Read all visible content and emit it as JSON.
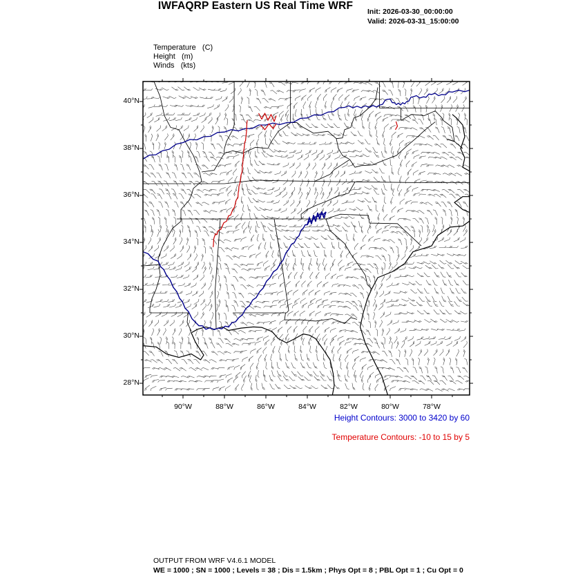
{
  "header": {
    "title": "IWFAQRP Eastern US Real Time WRF",
    "init": "Init: 2026-03-30_00:00:00",
    "valid": "Valid: 2026-03-31_15:00:00"
  },
  "legend": {
    "temperature": "Temperature   (C)",
    "height": "Height   (m)",
    "winds": "Winds   (kts)"
  },
  "axes": {
    "lat": [
      "40°N",
      "38°N",
      "36°N",
      "34°N",
      "32°N",
      "30°N",
      "28°N"
    ],
    "lon": [
      "90°W",
      "88°W",
      "86°W",
      "84°W",
      "82°W",
      "80°W",
      "78°W"
    ]
  },
  "notes": {
    "height": "Height Contours: 3000 to 3420 by 60",
    "temperature": "Temperature Contours: -10 to 15 by 5"
  },
  "footer": {
    "line1": "OUTPUT FROM WRF V4.6.1 MODEL",
    "line2": "WE = 1000 ; SN = 1000 ; Levels = 38 ; Dis = 1.5km ; Phys Opt = 8 ; PBL Opt = 1 ; Cu Opt = 0"
  },
  "colors": {
    "height_contour": "#00008B",
    "temperature_contour": "#CC0000",
    "note_height": "#0000CC",
    "note_temperature": "#E00000",
    "boundaries": "#000000"
  },
  "map": {
    "variables": [
      "Temperature (C)",
      "Height (m)",
      "Winds (kts)"
    ],
    "height_contours": {
      "min": 3000,
      "max": 3420,
      "interval": 60
    },
    "temperature_contours": {
      "min": -10,
      "max": 15,
      "interval": 5
    },
    "lat_range": [
      "28N",
      "40N"
    ],
    "lon_range": [
      "90W",
      "78W"
    ]
  }
}
